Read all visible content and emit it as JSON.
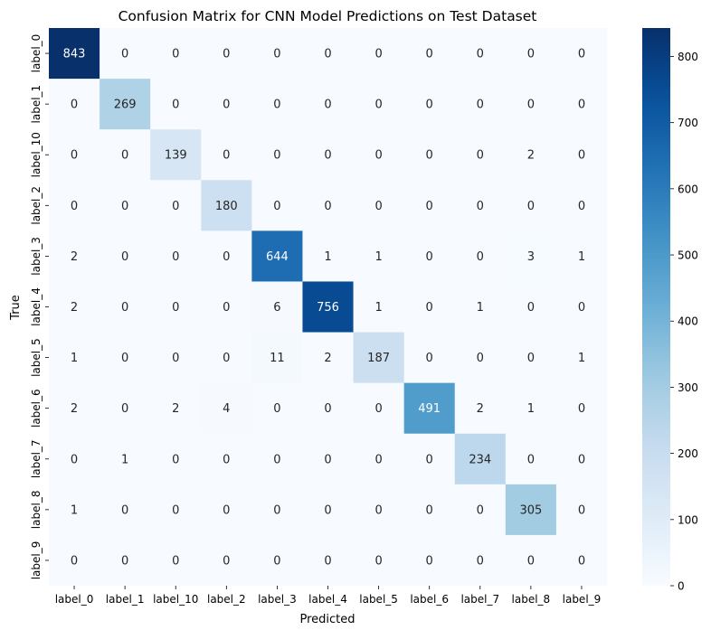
{
  "chart_data": {
    "type": "heatmap",
    "title": "Confusion Matrix for CNN Model Predictions on Test Dataset",
    "xlabel": "Predicted",
    "ylabel": "True",
    "x_categories": [
      "label_0",
      "label_1",
      "label_10",
      "label_2",
      "label_3",
      "label_4",
      "label_5",
      "label_6",
      "label_7",
      "label_8",
      "label_9"
    ],
    "y_categories": [
      "label_0",
      "label_1",
      "label_10",
      "label_2",
      "label_3",
      "label_4",
      "label_5",
      "label_6",
      "label_7",
      "label_8",
      "label_9"
    ],
    "values": [
      [
        843,
        0,
        0,
        0,
        0,
        0,
        0,
        0,
        0,
        0,
        0
      ],
      [
        0,
        269,
        0,
        0,
        0,
        0,
        0,
        0,
        0,
        0,
        0
      ],
      [
        0,
        0,
        139,
        0,
        0,
        0,
        0,
        0,
        0,
        2,
        0
      ],
      [
        0,
        0,
        0,
        180,
        0,
        0,
        0,
        0,
        0,
        0,
        0
      ],
      [
        2,
        0,
        0,
        0,
        644,
        1,
        1,
        0,
        0,
        3,
        1
      ],
      [
        2,
        0,
        0,
        0,
        6,
        756,
        1,
        0,
        1,
        0,
        0
      ],
      [
        1,
        0,
        0,
        0,
        11,
        2,
        187,
        0,
        0,
        0,
        1
      ],
      [
        2,
        0,
        2,
        4,
        0,
        0,
        0,
        491,
        2,
        1,
        0
      ],
      [
        0,
        1,
        0,
        0,
        0,
        0,
        0,
        0,
        234,
        0,
        0
      ],
      [
        1,
        0,
        0,
        0,
        0,
        0,
        0,
        0,
        0,
        305,
        0
      ],
      [
        0,
        0,
        0,
        0,
        0,
        0,
        0,
        0,
        0,
        0,
        0
      ]
    ],
    "colormap": "Blues",
    "vmin": 0,
    "vmax": 843,
    "colorbar_ticks": [
      0,
      100,
      200,
      300,
      400,
      500,
      600,
      700,
      800
    ],
    "annotations": true
  }
}
